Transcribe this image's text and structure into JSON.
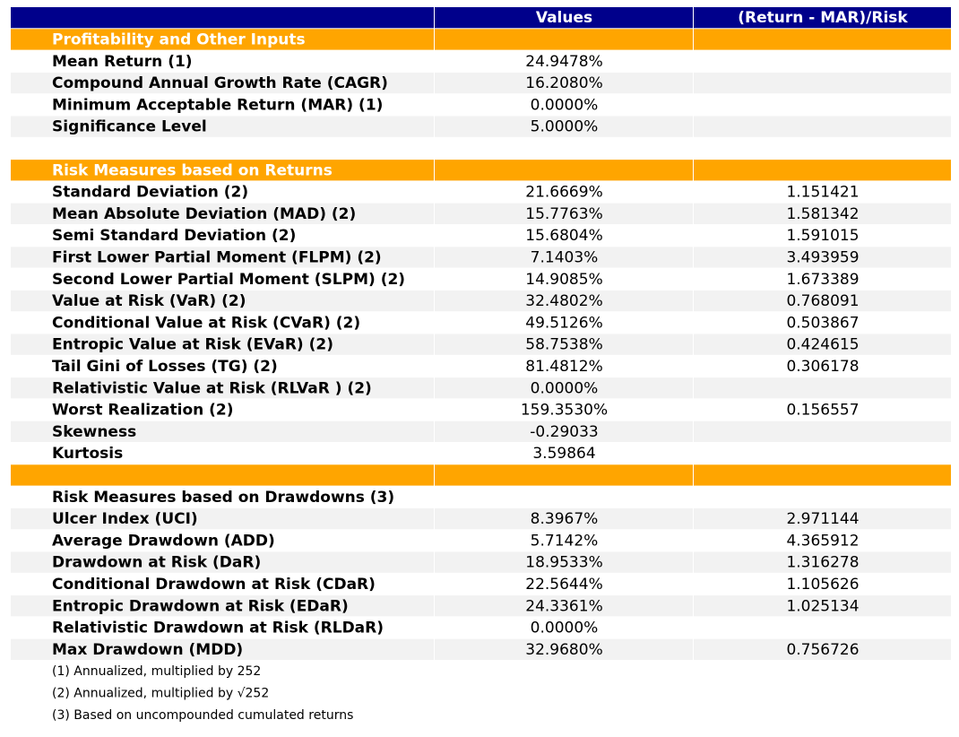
{
  "header": {
    "columns": [
      "Values",
      "(Return - MAR)/Risk"
    ]
  },
  "table": {
    "sections": [
      {
        "title": "Profitability and Other Inputs",
        "rows": [
          {
            "label": "Mean Return (1)",
            "value": "24.9478%"
          },
          {
            "label": "Compound Annual Growth Rate (CAGR)",
            "value": "16.2080%"
          },
          {
            "label": "Minimum Acceptable Return (MAR) (1)",
            "value": "0.0000%"
          },
          {
            "label": "Significance Level",
            "value": "5.0000%"
          }
        ]
      },
      {
        "title": "Risk Measures based on Returns",
        "rows": [
          {
            "label": "Standard Deviation (2)",
            "value": "21.6669%",
            "ratio": "1.151421"
          },
          {
            "label": "Mean Absolute Deviation (MAD) (2)",
            "value": "15.7763%",
            "ratio": "1.581342"
          },
          {
            "label": "Semi Standard Deviation (2)",
            "value": "15.6804%",
            "ratio": "1.591015"
          },
          {
            "label": "First Lower Partial Moment (FLPM) (2)",
            "value": "7.1403%",
            "ratio": "3.493959"
          },
          {
            "label": "Second Lower Partial Moment (SLPM) (2)",
            "value": "14.9085%",
            "ratio": "1.673389"
          },
          {
            "label": "Value at Risk (VaR) (2)",
            "value": "32.4802%",
            "ratio": "0.768091"
          },
          {
            "label": "Conditional Value at Risk (CVaR) (2)",
            "value": "49.5126%",
            "ratio": "0.503867"
          },
          {
            "label": "Entropic Value at Risk (EVaR) (2)",
            "value": "58.7538%",
            "ratio": "0.424615"
          },
          {
            "label": "Tail Gini of Losses (TG) (2)",
            "value": "81.4812%",
            "ratio": "0.306178"
          },
          {
            "label": "Relativistic Value at Risk (RLVaR ) (2)",
            "value": "0.0000%"
          },
          {
            "label": "Worst Realization (2)",
            "value": "159.3530%",
            "ratio": "0.156557"
          },
          {
            "label": "Skewness",
            "value": "-0.29033"
          },
          {
            "label": "Kurtosis",
            "value": "3.59864"
          }
        ]
      },
      {
        "subtitle": "Risk Measures based on Drawdowns (3)",
        "rows": [
          {
            "label": "Ulcer Index (UCI)",
            "value": "8.3967%",
            "ratio": "2.971144"
          },
          {
            "label": "Average Drawdown (ADD)",
            "value": "5.7142%",
            "ratio": "4.365912"
          },
          {
            "label": "Drawdown at Risk (DaR)",
            "value": "18.9533%",
            "ratio": "1.316278"
          },
          {
            "label": "Conditional Drawdown at Risk (CDaR)",
            "value": "22.5644%",
            "ratio": "1.105626"
          },
          {
            "label": "Entropic Drawdown at Risk (EDaR)",
            "value": "24.3361%",
            "ratio": "1.025134"
          },
          {
            "label": "Relativistic Drawdown at Risk (RLDaR)",
            "value": "0.0000%"
          },
          {
            "label": "Max Drawdown (MDD)",
            "value": "32.9680%",
            "ratio": "0.756726"
          }
        ]
      }
    ]
  },
  "notes": [
    "(1) Annualized, multiplied by 252",
    "(2) Annualized, multiplied by √252",
    "(3) Based on uncompounded cumulated returns"
  ]
}
